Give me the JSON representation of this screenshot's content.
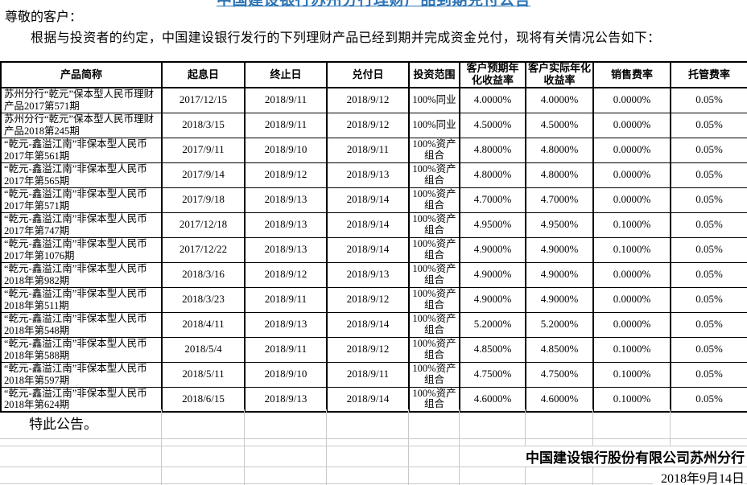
{
  "title": "中国建设银行苏州分行理财产品到期兑付公告",
  "greeting": "尊敬的客户：",
  "intro": "根据与投资者的约定，中国建设银行发行的下列理财产品已经到期并完成资金兑付，现将有关情况公告如下：",
  "table": {
    "headers": [
      "产品简称",
      "起息日",
      "终止日",
      "兑付日",
      "投资范围",
      "客户预期年化收益率",
      "客户实际年化收益率",
      "销售费率",
      "托管费率"
    ],
    "rows": [
      [
        "苏州分行“乾元”保本型人民币理财产品2017第571期",
        "2017/12/15",
        "2018/9/11",
        "2018/9/12",
        "100%同业",
        "4.0000%",
        "4.0000%",
        "0.0000%",
        "0.05%"
      ],
      [
        "苏州分行“乾元”保本型人民币理财产品2018第245期",
        "2018/3/15",
        "2018/9/11",
        "2018/9/12",
        "100%同业",
        "4.5000%",
        "4.5000%",
        "0.0000%",
        "0.05%"
      ],
      [
        "“乾元-鑫溢江南”非保本型人民币2017年第561期",
        "2017/9/11",
        "2018/9/10",
        "2018/9/11",
        "100%资产组合",
        "4.8000%",
        "4.8000%",
        "0.0000%",
        "0.05%"
      ],
      [
        "“乾元-鑫溢江南”非保本型人民币2017年第565期",
        "2017/9/14",
        "2018/9/12",
        "2018/9/13",
        "100%资产组合",
        "4.8000%",
        "4.8000%",
        "0.0000%",
        "0.05%"
      ],
      [
        "“乾元-鑫溢江南”非保本型人民币2017年第571期",
        "2017/9/18",
        "2018/9/13",
        "2018/9/14",
        "100%资产组合",
        "4.7000%",
        "4.7000%",
        "0.0000%",
        "0.05%"
      ],
      [
        "“乾元-鑫溢江南”非保本型人民币2017年第747期",
        "2017/12/18",
        "2018/9/13",
        "2018/9/14",
        "100%资产组合",
        "4.9500%",
        "4.9500%",
        "0.1000%",
        "0.05%"
      ],
      [
        "“乾元-鑫溢江南”非保本型人民币2017年第1076期",
        "2017/12/22",
        "2018/9/13",
        "2018/9/14",
        "100%资产组合",
        "4.9000%",
        "4.9000%",
        "0.1000%",
        "0.05%"
      ],
      [
        "“乾元-鑫溢江南”非保本型人民币2018年第982期",
        "2018/3/16",
        "2018/9/12",
        "2018/9/13",
        "100%资产组合",
        "4.9000%",
        "4.9000%",
        "0.0000%",
        "0.05%"
      ],
      [
        "“乾元-鑫溢江南”非保本型人民币2018年第511期",
        "2018/3/23",
        "2018/9/11",
        "2018/9/12",
        "100%资产组合",
        "4.9000%",
        "4.9000%",
        "0.0000%",
        "0.05%"
      ],
      [
        "“乾元-鑫溢江南”非保本型人民币2018年第548期",
        "2018/4/11",
        "2018/9/13",
        "2018/9/14",
        "100%资产组合",
        "5.2000%",
        "5.2000%",
        "0.0000%",
        "0.05%"
      ],
      [
        "“乾元-鑫溢江南”非保本型人民币2018年第588期",
        "2018/5/4",
        "2018/9/11",
        "2018/9/12",
        "100%资产组合",
        "4.8500%",
        "4.8500%",
        "0.1000%",
        "0.05%"
      ],
      [
        "“乾元-鑫溢江南”非保本型人民币2018年第597期",
        "2018/5/11",
        "2018/9/10",
        "2018/9/11",
        "100%资产组合",
        "4.7500%",
        "4.7500%",
        "0.1000%",
        "0.05%"
      ],
      [
        "“乾元-鑫溢江南”非保本型人民币2018年第624期",
        "2018/6/15",
        "2018/9/13",
        "2018/9/14",
        "100%资产组合",
        "4.6000%",
        "4.6000%",
        "0.1000%",
        "0.05%"
      ]
    ]
  },
  "closing": "特此公告。",
  "signature": {
    "company": "中国建设银行股份有限公司苏州分行",
    "date": "2018年9月14日"
  },
  "colors": {
    "title_blue": "#2e74b5",
    "table_border": "#000000",
    "gridline": "#c9c9c9"
  }
}
